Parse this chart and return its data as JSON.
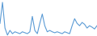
{
  "values": [
    40,
    85,
    30,
    15,
    25,
    18,
    22,
    20,
    18,
    22,
    20,
    18,
    22,
    55,
    25,
    18,
    40,
    60,
    35,
    22,
    25,
    22,
    20,
    22,
    20,
    18,
    22,
    20,
    18,
    35,
    50,
    40,
    35,
    42,
    38,
    30,
    35,
    32,
    28,
    35
  ],
  "line_color": "#5b9bd5",
  "bg_color": "#ffffff",
  "linewidth": 0.8
}
